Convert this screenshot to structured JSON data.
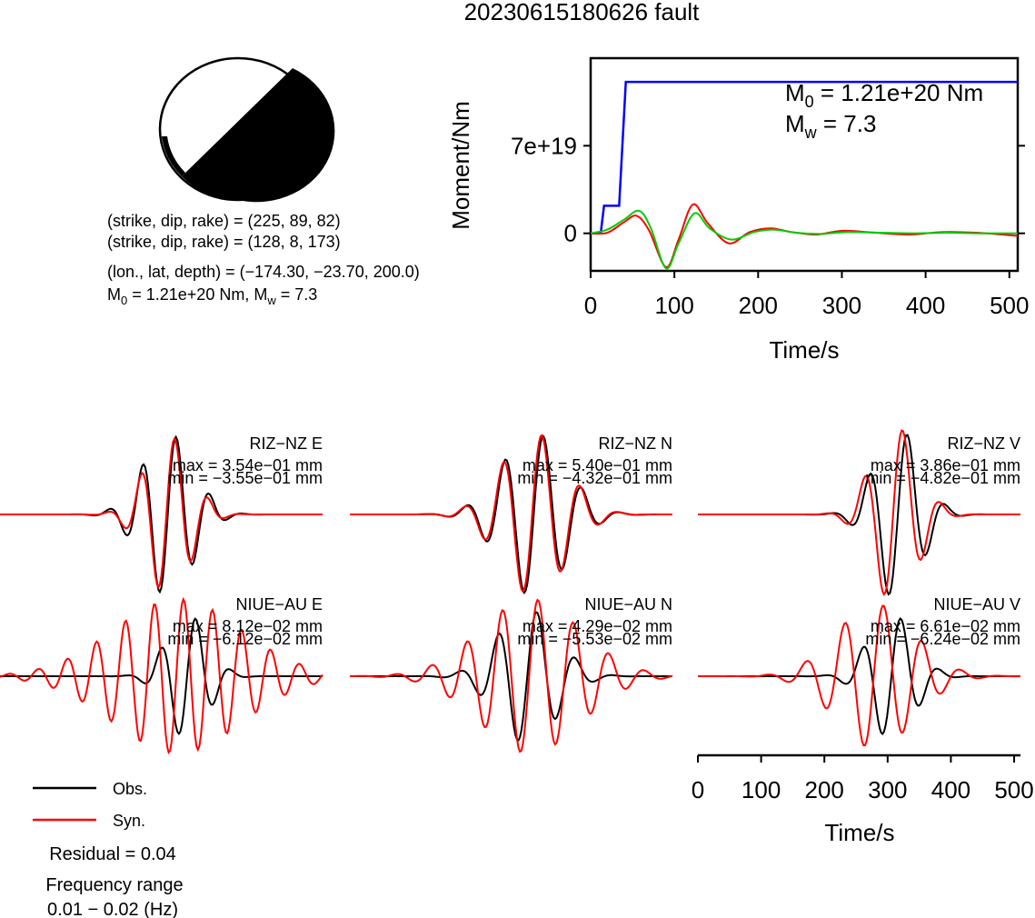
{
  "title": "20230615180626 fault",
  "mechanism": {
    "line1": "(strike, dip, rake) = (225, 89, 82)",
    "line2": "(strike, dip, rake) = (128, 8, 173)",
    "line3": "(lon., lat, depth) = (−174.30, −23.70, 200.0)",
    "m0_prefix": "M",
    "m0_sub": "0",
    "m0_mid": " = 1.21e+20 Nm, M",
    "mw_sub": "w",
    "mw_tail": " = 7.3"
  },
  "moment_chart": {
    "m0_label_main": "M",
    "m0_label_sub": "0",
    "m0_label_tail": " = 1.21e+20 Nm",
    "mw_label_main": "M",
    "mw_label_sub": "w",
    "mw_label_tail": " = 7.3"
  },
  "legend": {
    "obs": "Obs.",
    "syn": "Syn.",
    "residual": "Residual = 0.04",
    "freq_label": "Frequency range",
    "freq_value": "0.01 − 0.02 (Hz)"
  },
  "colors": {
    "moment": "#0000ff",
    "observed": "#000000",
    "synthetic": "#ff0000",
    "green_trace": "#00cc00"
  },
  "chart_data": [
    {
      "type": "line",
      "title": "",
      "xlabel": "Time/s",
      "ylabel": "Moment/Nm",
      "xlim": [
        0,
        510
      ],
      "ylim": [
        -3e+19,
        1.4e+20
      ],
      "xticks": [
        0,
        100,
        200,
        300,
        400,
        500
      ],
      "yticks": [
        0,
        7e+19
      ],
      "ytick_labels": [
        "0",
        "7e+19"
      ],
      "series": [
        {
          "color": "#0000ff",
          "x": [
            0,
            12,
            16,
            30,
            34,
            42,
            46,
            510
          ],
          "y": [
            0,
            0,
            2.2e+19,
            2.2e+19,
            2.2e+19,
            1.21e+20,
            1.21e+20,
            1.21e+20
          ]
        },
        {
          "color": "#ff0000",
          "x": [
            0,
            20,
            40,
            55,
            70,
            90,
            105,
            122,
            140,
            165,
            190,
            215,
            240,
            270,
            300,
            340,
            380,
            420,
            460,
            510
          ],
          "y": [
            0,
            5e+17,
            9e+18,
            1.4e+19,
            2e+18,
            -2.7e+19,
            -5e+18,
            2.3e+19,
            8e+18,
            -8e+18,
            1e+18,
            4e+18,
            1e+18,
            -1e+18,
            2e+18,
            5e+17,
            -1e+18,
            1e+18,
            5e+17,
            -2e+18
          ]
        },
        {
          "color": "#00cc00",
          "x": [
            0,
            20,
            40,
            58,
            72,
            90,
            105,
            124,
            142,
            168,
            195,
            218,
            245,
            275,
            305,
            345,
            385,
            425,
            465,
            510
          ],
          "y": [
            0,
            3e+18,
            1.1e+19,
            1.8e+19,
            4e+18,
            -2.8e+19,
            -8e+18,
            1.6e+19,
            4e+18,
            -5e+18,
            1e+18,
            3e+18,
            5e+17,
            -5e+17,
            1e+18,
            5e+17,
            0,
            5e+17,
            0,
            0
          ]
        }
      ]
    },
    {
      "type": "line",
      "waveforms": [
        {
          "station": "RIZ−NZ E",
          "max": "max = 3.54e−01 mm",
          "min": "min = −3.55e−01 mm"
        },
        {
          "station": "RIZ−NZ N",
          "max": "max = 5.40e−01 mm",
          "min": "min = −4.32e−01 mm"
        },
        {
          "station": "RIZ−NZ V",
          "max": "max = 3.86e−01 mm",
          "min": "min = −4.82e−01 mm"
        },
        {
          "station": "NIUE−AU E",
          "max": "max = 8.12e−02 mm",
          "min": "min = −6.12e−02 mm"
        },
        {
          "station": "NIUE−AU N",
          "max": "max = 4.29e−02 mm",
          "min": "min = −5.53e−02 mm"
        },
        {
          "station": "NIUE−AU V",
          "max": "max = 6.61e−02 mm",
          "min": "min = −6.24e−02 mm"
        }
      ],
      "xlabel": "Time/s",
      "xlim": [
        0,
        510
      ],
      "xticks": [
        0,
        100,
        200,
        300,
        400,
        500
      ]
    }
  ]
}
